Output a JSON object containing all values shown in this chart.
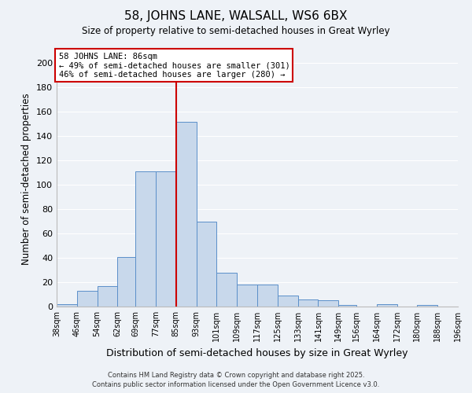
{
  "title": "58, JOHNS LANE, WALSALL, WS6 6BX",
  "subtitle": "Size of property relative to semi-detached houses in Great Wyrley",
  "xlabel": "Distribution of semi-detached houses by size in Great Wyrley",
  "ylabel": "Number of semi-detached properties",
  "bar_color": "#c8d8eb",
  "bar_edge_color": "#5b8fc9",
  "background_color": "#eef2f7",
  "grid_color": "#ffffff",
  "bin_labels": [
    "38sqm",
    "46sqm",
    "54sqm",
    "62sqm",
    "69sqm",
    "77sqm",
    "85sqm",
    "93sqm",
    "101sqm",
    "109sqm",
    "117sqm",
    "125sqm",
    "133sqm",
    "141sqm",
    "149sqm",
    "156sqm",
    "164sqm",
    "172sqm",
    "180sqm",
    "188sqm",
    "196sqm"
  ],
  "bin_edges": [
    38,
    46,
    54,
    62,
    69,
    77,
    85,
    93,
    101,
    109,
    117,
    125,
    133,
    141,
    149,
    156,
    164,
    172,
    180,
    188,
    196
  ],
  "bar_heights": [
    2,
    13,
    17,
    41,
    111,
    111,
    152,
    70,
    28,
    18,
    18,
    9,
    6,
    5,
    1,
    0,
    2,
    0,
    1,
    0
  ],
  "vline_x": 85,
  "vline_color": "#cc0000",
  "annotation_title": "58 JOHNS LANE: 86sqm",
  "annotation_line1": "← 49% of semi-detached houses are smaller (301)",
  "annotation_line2": "46% of semi-detached houses are larger (280) →",
  "annotation_box_color": "#ffffff",
  "annotation_box_edge": "#cc0000",
  "ylim": [
    0,
    210
  ],
  "yticks": [
    0,
    20,
    40,
    60,
    80,
    100,
    120,
    140,
    160,
    180,
    200
  ],
  "footer_line1": "Contains HM Land Registry data © Crown copyright and database right 2025.",
  "footer_line2": "Contains public sector information licensed under the Open Government Licence v3.0."
}
